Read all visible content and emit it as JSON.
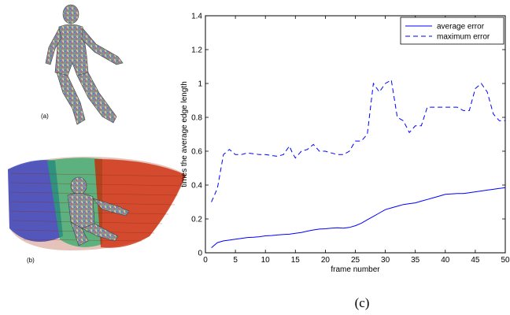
{
  "panels": {
    "a_label": "(a)",
    "b_label": "(b)",
    "c_label": "(c)"
  },
  "colors": {
    "series": "#0000ff",
    "axis": "#000000",
    "figure_a": "#8a8f98",
    "trail_blue": "#2233bb",
    "trail_green": "#22aa66",
    "trail_red": "#cc2200"
  },
  "chart_data": {
    "type": "line",
    "xlabel": "frame number",
    "ylabel": "times the average edge length",
    "xlim": [
      0,
      50
    ],
    "ylim": [
      0,
      1.4
    ],
    "xticks": [
      0,
      5,
      10,
      15,
      20,
      25,
      30,
      35,
      40,
      45,
      50
    ],
    "yticks": [
      0,
      0.2,
      0.4,
      0.6,
      0.8,
      1,
      1.2,
      1.4
    ],
    "xtick_labels": [
      "0",
      "5",
      "10",
      "15",
      "20",
      "25",
      "30",
      "35",
      "40",
      "45",
      "50"
    ],
    "ytick_labels": [
      "0",
      "0.2",
      "0.4",
      "0.6",
      "0.8",
      "1",
      "1.2",
      "1.4"
    ],
    "grid": false,
    "legend_position": "top-right",
    "series": [
      {
        "name": "average error",
        "style": "solid",
        "x": [
          1,
          2,
          3,
          4,
          5,
          6,
          7,
          8,
          9,
          10,
          11,
          12,
          13,
          14,
          15,
          16,
          17,
          18,
          19,
          20,
          21,
          22,
          23,
          24,
          25,
          26,
          27,
          28,
          29,
          30,
          31,
          32,
          33,
          34,
          35,
          36,
          37,
          38,
          39,
          40,
          41,
          42,
          43,
          44,
          45,
          46,
          47,
          48,
          49,
          50
        ],
        "values": [
          0.03,
          0.06,
          0.07,
          0.075,
          0.08,
          0.085,
          0.09,
          0.092,
          0.095,
          0.1,
          0.102,
          0.105,
          0.108,
          0.11,
          0.115,
          0.12,
          0.128,
          0.135,
          0.14,
          0.142,
          0.145,
          0.148,
          0.145,
          0.15,
          0.16,
          0.175,
          0.195,
          0.215,
          0.235,
          0.255,
          0.265,
          0.275,
          0.285,
          0.29,
          0.295,
          0.305,
          0.315,
          0.325,
          0.335,
          0.345,
          0.348,
          0.35,
          0.35,
          0.355,
          0.36,
          0.365,
          0.37,
          0.375,
          0.38,
          0.385
        ]
      },
      {
        "name": "maximum error",
        "style": "dashed",
        "x": [
          1,
          2,
          3,
          4,
          5,
          6,
          7,
          8,
          9,
          10,
          11,
          12,
          13,
          14,
          14.5,
          15,
          16,
          17,
          18,
          19,
          20,
          21,
          22,
          23,
          24,
          25,
          26,
          27,
          28,
          29,
          30,
          31,
          32,
          33,
          34,
          35,
          36,
          37,
          38,
          39,
          40,
          41,
          42,
          43,
          44,
          45,
          46,
          47,
          48,
          49,
          50
        ],
        "values": [
          0.3,
          0.38,
          0.58,
          0.61,
          0.58,
          0.58,
          0.59,
          0.585,
          0.58,
          0.58,
          0.575,
          0.57,
          0.58,
          0.63,
          0.59,
          0.56,
          0.6,
          0.61,
          0.64,
          0.6,
          0.6,
          0.59,
          0.58,
          0.58,
          0.6,
          0.66,
          0.66,
          0.7,
          1.0,
          0.95,
          1.0,
          1.02,
          0.8,
          0.78,
          0.71,
          0.75,
          0.75,
          0.86,
          0.86,
          0.86,
          0.86,
          0.86,
          0.86,
          0.84,
          0.84,
          0.97,
          1.0,
          0.95,
          0.82,
          0.78,
          0.78
        ]
      }
    ]
  }
}
